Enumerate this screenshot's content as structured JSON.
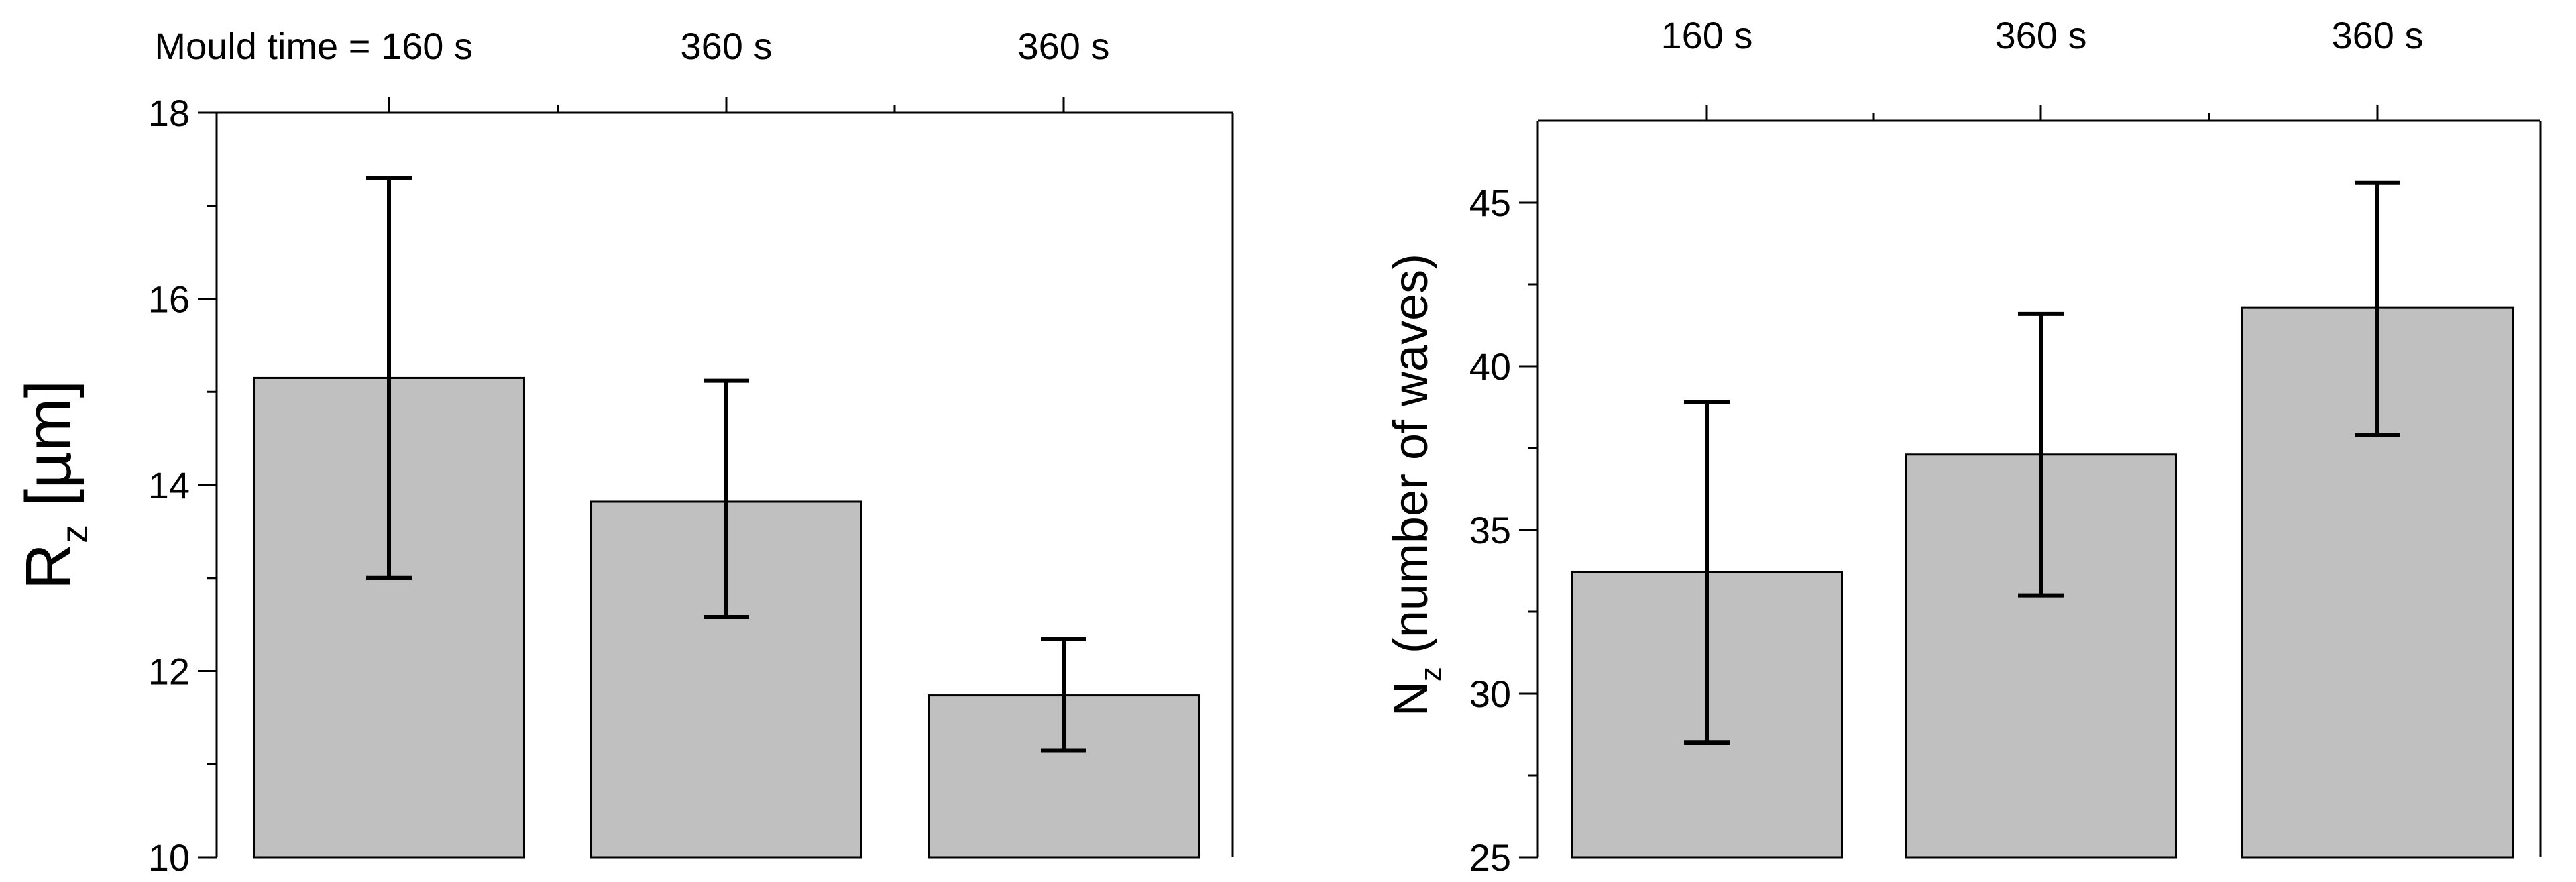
{
  "chart_data": [
    {
      "type": "bar",
      "top_label_prefix": "Mould time = ",
      "categories": [
        "160 s",
        "360 s",
        "360 s"
      ],
      "values": [
        15.15,
        13.82,
        11.74
      ],
      "error_high": [
        17.3,
        15.12,
        12.35
      ],
      "error_low": [
        13.0,
        12.58,
        11.15
      ],
      "ylabel_main": "R",
      "ylabel_sub": "z",
      "ylabel_rest": " [µm]",
      "ylim": [
        10,
        18
      ],
      "yticks": [
        10,
        12,
        14,
        16,
        18
      ],
      "bar_color": "#c0c0c0",
      "grid": false
    },
    {
      "type": "bar",
      "categories": [
        "160 s",
        "360 s",
        "360 s"
      ],
      "values": [
        33.7,
        37.3,
        41.8
      ],
      "error_high": [
        38.9,
        41.6,
        45.6
      ],
      "error_low": [
        28.5,
        33.0,
        37.9
      ],
      "ylabel_main": "N",
      "ylabel_sub": "z",
      "ylabel_rest": " (number of waves)",
      "ylim": [
        25,
        47.5
      ],
      "yticks": [
        25,
        30,
        35,
        40,
        45
      ],
      "bar_color": "#c0c0c0",
      "grid": false
    }
  ]
}
